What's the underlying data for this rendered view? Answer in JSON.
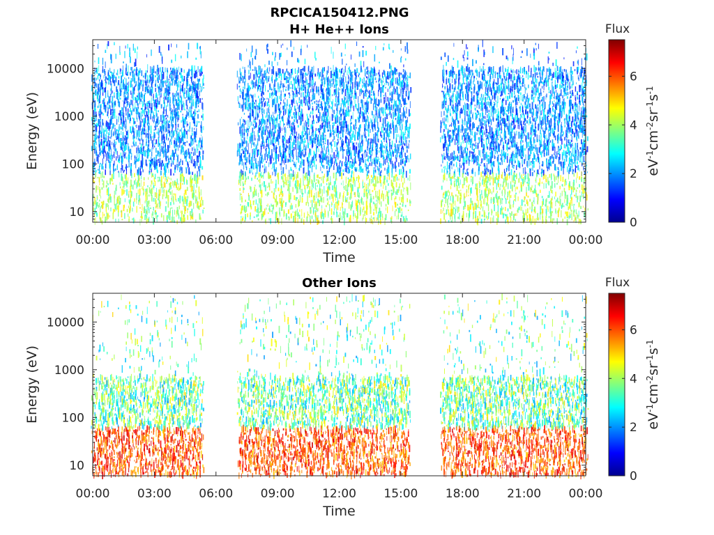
{
  "figure": {
    "title_line1": "RPCICA150412.PNG"
  },
  "colors": {
    "background": "#ffffff",
    "axis": "#262626",
    "jet": [
      "#00008f",
      "#0000ff",
      "#0080ff",
      "#00ffff",
      "#80ff80",
      "#ffff00",
      "#ff8000",
      "#ff0000",
      "#800000"
    ]
  },
  "chart_data": [
    {
      "type": "heatmap",
      "title": "H+ He++ Ions",
      "xlabel": "Time",
      "ylabel": "Energy (eV)",
      "x_ticks": [
        "00:00",
        "03:00",
        "06:00",
        "09:00",
        "12:00",
        "15:00",
        "18:00",
        "21:00",
        "00:00"
      ],
      "x_range_hours": [
        0,
        24
      ],
      "y_scale": "log",
      "y_ticks": [
        "10",
        "100",
        "1000",
        "10000"
      ],
      "y_tick_values": [
        10,
        100,
        1000,
        10000
      ],
      "y_range": [
        6,
        40000
      ],
      "data_gaps_hours": [
        [
          5.3,
          7.1
        ],
        [
          15.4,
          17.0
        ]
      ],
      "colorbar": {
        "title": "Flux",
        "label": "eV-1cm-2sr-1s-1",
        "label_base": [
          "eV",
          "cm",
          "sr",
          "s"
        ],
        "label_exp": [
          "-1",
          "-2",
          "-1",
          "-1"
        ],
        "ticks": [
          "0",
          "2",
          "4",
          "6"
        ],
        "range": [
          0,
          7.5
        ],
        "colormap": "jet"
      },
      "flux_profile": {
        "dominant_energy_range_eV": [
          100,
          10000
        ],
        "typical_flux": [
          1,
          3
        ],
        "low_energy_peak_flux": 5
      }
    },
    {
      "type": "heatmap",
      "title": "Other Ions",
      "xlabel": "Time",
      "ylabel": "Energy (eV)",
      "x_ticks": [
        "00:00",
        "03:00",
        "06:00",
        "09:00",
        "12:00",
        "15:00",
        "18:00",
        "21:00",
        "00:00"
      ],
      "x_range_hours": [
        0,
        24
      ],
      "y_scale": "log",
      "y_ticks": [
        "10",
        "100",
        "1000",
        "10000"
      ],
      "y_tick_values": [
        10,
        100,
        1000,
        10000
      ],
      "y_range": [
        6,
        40000
      ],
      "data_gaps_hours": [
        [
          5.3,
          7.1
        ],
        [
          15.4,
          17.0
        ]
      ],
      "colorbar": {
        "title": "Flux",
        "label": "eV-1cm-2sr-1s-1",
        "label_base": [
          "eV",
          "cm",
          "sr",
          "s"
        ],
        "label_exp": [
          "-1",
          "-2",
          "-1",
          "-1"
        ],
        "ticks": [
          "0",
          "2",
          "4",
          "6"
        ],
        "range": [
          0,
          7.5
        ],
        "colormap": "jet"
      },
      "flux_profile": {
        "dominant_energy_range_eV": [
          6,
          700
        ],
        "typical_flux": [
          2,
          5
        ],
        "low_energy_peak_flux": 7
      }
    }
  ]
}
